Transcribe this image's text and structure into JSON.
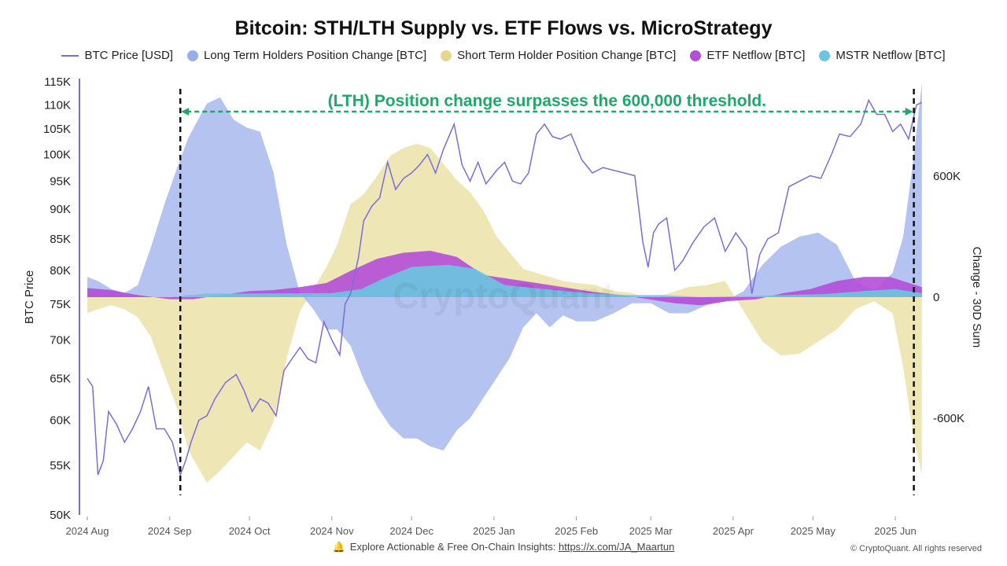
{
  "chart_data": {
    "type": "area",
    "title": "Bitcoin: STH/LTH Supply vs. ETF Flows vs. MicroStrategy",
    "ylabel_left": "BTC Price",
    "ylabel_right": "Change - 30D Sum",
    "y_left_ticks": [
      "115K",
      "110K",
      "105K",
      "100K",
      "95K",
      "90K",
      "85K",
      "80K",
      "75K",
      "70K",
      "65K",
      "60K",
      "55K",
      "50K"
    ],
    "y_left_scale": "log",
    "y_left_range": [
      50000,
      115000
    ],
    "y_right_ticks": [
      "600K",
      "0",
      "-600K"
    ],
    "y_right_range": [
      -1080000,
      1080000
    ],
    "x_ticks": [
      "2024 Aug",
      "2024 Sep",
      "2024 Oct",
      "2024 Nov",
      "2024 Dec",
      "2025 Jan",
      "2025 Feb",
      "2025 Mar",
      "2025 Apr",
      "2025 May",
      "2025 Jun"
    ],
    "annotation": "(LTH) Position change surpasses the 600,000 threshold.",
    "annotation_start": "2024-09-05",
    "annotation_end": "2025-06-08",
    "watermark": "CryptoQuant",
    "series": [
      {
        "name": "BTC Price [USD]",
        "type": "line",
        "color": "#7b6cd9",
        "axis": "left",
        "x": [
          "2024-08-01",
          "2024-08-03",
          "2024-08-05",
          "2024-08-07",
          "2024-08-09",
          "2024-08-12",
          "2024-08-15",
          "2024-08-18",
          "2024-08-21",
          "2024-08-24",
          "2024-08-27",
          "2024-08-30",
          "2024-09-02",
          "2024-09-05",
          "2024-09-07",
          "2024-09-09",
          "2024-09-12",
          "2024-09-15",
          "2024-09-18",
          "2024-09-22",
          "2024-09-26",
          "2024-09-29",
          "2024-10-02",
          "2024-10-05",
          "2024-10-08",
          "2024-10-11",
          "2024-10-14",
          "2024-10-17",
          "2024-10-20",
          "2024-10-23",
          "2024-10-26",
          "2024-10-29",
          "2024-11-01",
          "2024-11-04",
          "2024-11-06",
          "2024-11-08",
          "2024-11-11",
          "2024-11-13",
          "2024-11-16",
          "2024-11-19",
          "2024-11-22",
          "2024-11-25",
          "2024-11-28",
          "2024-12-01",
          "2024-12-04",
          "2024-12-07",
          "2024-12-10",
          "2024-12-13",
          "2024-12-17",
          "2024-12-20",
          "2024-12-23",
          "2024-12-26",
          "2024-12-29",
          "2025-01-02",
          "2025-01-05",
          "2025-01-08",
          "2025-01-11",
          "2025-01-14",
          "2025-01-17",
          "2025-01-20",
          "2025-01-23",
          "2025-01-26",
          "2025-01-30",
          "2025-02-03",
          "2025-02-07",
          "2025-02-11",
          "2025-02-15",
          "2025-02-19",
          "2025-02-23",
          "2025-02-26",
          "2025-02-28",
          "2025-03-02",
          "2025-03-04",
          "2025-03-07",
          "2025-03-10",
          "2025-03-13",
          "2025-03-17",
          "2025-03-21",
          "2025-03-25",
          "2025-03-29",
          "2025-04-02",
          "2025-04-06",
          "2025-04-08",
          "2025-04-11",
          "2025-04-14",
          "2025-04-18",
          "2025-04-22",
          "2025-04-26",
          "2025-04-30",
          "2025-05-04",
          "2025-05-08",
          "2025-05-11",
          "2025-05-15",
          "2025-05-19",
          "2025-05-22",
          "2025-05-25",
          "2025-05-28",
          "2025-05-31",
          "2025-06-03",
          "2025-06-06",
          "2025-06-09",
          "2025-06-11"
        ],
        "y": [
          65000,
          64000,
          54000,
          55500,
          61000,
          59500,
          57500,
          59000,
          61000,
          64000,
          59000,
          59000,
          57500,
          54000,
          55500,
          57500,
          60000,
          60500,
          62500,
          64500,
          65500,
          63500,
          61000,
          62500,
          62000,
          60500,
          66000,
          67500,
          69000,
          67500,
          67000,
          72500,
          70000,
          68000,
          75000,
          76500,
          82000,
          88000,
          90500,
          92000,
          98500,
          93500,
          95500,
          96500,
          98000,
          100000,
          96500,
          101000,
          106000,
          98000,
          95000,
          98500,
          94500,
          97000,
          98500,
          95000,
          94500,
          96500,
          104000,
          106000,
          103500,
          103000,
          104000,
          99000,
          96500,
          97500,
          97000,
          96500,
          96000,
          84500,
          80500,
          86000,
          87500,
          88500,
          80000,
          81500,
          84500,
          87000,
          88500,
          83000,
          86000,
          83500,
          76500,
          82500,
          85000,
          86000,
          94000,
          95000,
          96000,
          95500,
          100000,
          104000,
          103500,
          106000,
          111000,
          108000,
          108000,
          104500,
          106000,
          103000,
          110000,
          110500
        ]
      },
      {
        "name": "Long Term Holders Position Change [BTC]",
        "type": "area",
        "color": "#a7b9ec",
        "axis": "right",
        "x": [
          "2024-08-01",
          "2024-08-05",
          "2024-08-10",
          "2024-08-15",
          "2024-08-20",
          "2024-08-25",
          "2024-08-30",
          "2024-09-04",
          "2024-09-08",
          "2024-09-15",
          "2024-09-20",
          "2024-09-25",
          "2024-09-30",
          "2024-10-05",
          "2024-10-10",
          "2024-10-15",
          "2024-10-20",
          "2024-10-25",
          "2024-10-30",
          "2024-11-03",
          "2024-11-08",
          "2024-11-13",
          "2024-11-18",
          "2024-11-23",
          "2024-11-28",
          "2024-12-03",
          "2024-12-08",
          "2024-12-13",
          "2024-12-18",
          "2024-12-23",
          "2024-12-28",
          "2025-01-02",
          "2025-01-07",
          "2025-01-12",
          "2025-01-17",
          "2025-01-22",
          "2025-01-27",
          "2025-02-01",
          "2025-02-08",
          "2025-02-15",
          "2025-02-22",
          "2025-03-01",
          "2025-03-08",
          "2025-03-15",
          "2025-03-22",
          "2025-03-29",
          "2025-04-05",
          "2025-04-12",
          "2025-04-19",
          "2025-04-26",
          "2025-05-03",
          "2025-05-10",
          "2025-05-17",
          "2025-05-24",
          "2025-05-31",
          "2025-06-04",
          "2025-06-08",
          "2025-06-11"
        ],
        "y": [
          100000,
          80000,
          40000,
          20000,
          60000,
          250000,
          460000,
          650000,
          790000,
          960000,
          990000,
          880000,
          840000,
          820000,
          620000,
          260000,
          20000,
          -60000,
          -160000,
          -160000,
          -240000,
          -410000,
          -540000,
          -640000,
          -700000,
          -700000,
          -740000,
          -760000,
          -660000,
          -600000,
          -500000,
          -400000,
          -300000,
          -150000,
          -80000,
          -150000,
          -90000,
          -120000,
          -120000,
          -80000,
          -30000,
          -30000,
          -80000,
          -80000,
          -40000,
          -20000,
          30000,
          160000,
          250000,
          300000,
          320000,
          260000,
          80000,
          30000,
          120000,
          300000,
          700000,
          1060000
        ]
      },
      {
        "name": "Short Term Holder Position Change [BTC]",
        "type": "area",
        "color": "#ede3ae",
        "axis": "right",
        "x": [
          "2024-08-01",
          "2024-08-05",
          "2024-08-10",
          "2024-08-15",
          "2024-08-20",
          "2024-08-25",
          "2024-08-30",
          "2024-09-04",
          "2024-09-08",
          "2024-09-15",
          "2024-09-20",
          "2024-09-25",
          "2024-09-30",
          "2024-10-05",
          "2024-10-10",
          "2024-10-15",
          "2024-10-20",
          "2024-10-25",
          "2024-10-30",
          "2024-11-03",
          "2024-11-08",
          "2024-11-13",
          "2024-11-18",
          "2024-11-23",
          "2024-11-28",
          "2024-12-03",
          "2024-12-08",
          "2024-12-13",
          "2024-12-18",
          "2024-12-23",
          "2024-12-28",
          "2025-01-02",
          "2025-01-07",
          "2025-01-12",
          "2025-01-17",
          "2025-01-22",
          "2025-01-27",
          "2025-02-01",
          "2025-02-08",
          "2025-02-15",
          "2025-02-22",
          "2025-03-01",
          "2025-03-08",
          "2025-03-15",
          "2025-03-22",
          "2025-03-29",
          "2025-04-05",
          "2025-04-12",
          "2025-04-19",
          "2025-04-26",
          "2025-05-03",
          "2025-05-10",
          "2025-05-17",
          "2025-05-24",
          "2025-05-31",
          "2025-06-04",
          "2025-06-08",
          "2025-06-11"
        ],
        "y": [
          -80000,
          -60000,
          -40000,
          -60000,
          -100000,
          -200000,
          -380000,
          -560000,
          -760000,
          -920000,
          -860000,
          -790000,
          -720000,
          -760000,
          -620000,
          -300000,
          -70000,
          40000,
          150000,
          260000,
          460000,
          510000,
          600000,
          700000,
          740000,
          760000,
          740000,
          660000,
          580000,
          520000,
          430000,
          300000,
          220000,
          140000,
          120000,
          100000,
          80000,
          70000,
          60000,
          30000,
          20000,
          -10000,
          20000,
          50000,
          60000,
          80000,
          -70000,
          -220000,
          -290000,
          -280000,
          -220000,
          -160000,
          -60000,
          -20000,
          -80000,
          -350000,
          -700000,
          -880000
        ]
      },
      {
        "name": "ETF Netflow [BTC]",
        "type": "area",
        "color": "#b44ed8",
        "axis": "right",
        "x": [
          "2024-08-01",
          "2024-08-10",
          "2024-08-20",
          "2024-09-01",
          "2024-09-10",
          "2024-09-20",
          "2024-10-01",
          "2024-10-10",
          "2024-10-20",
          "2024-10-30",
          "2024-11-08",
          "2024-11-18",
          "2024-11-28",
          "2024-12-08",
          "2024-12-18",
          "2024-12-28",
          "2025-01-07",
          "2025-01-17",
          "2025-01-27",
          "2025-02-08",
          "2025-02-18",
          "2025-02-28",
          "2025-03-10",
          "2025-03-20",
          "2025-03-30",
          "2025-04-10",
          "2025-04-20",
          "2025-04-30",
          "2025-05-10",
          "2025-05-20",
          "2025-05-30",
          "2025-06-11"
        ],
        "y": [
          45000,
          35000,
          10000,
          -10000,
          -10000,
          10000,
          30000,
          35000,
          50000,
          70000,
          130000,
          190000,
          220000,
          230000,
          200000,
          110000,
          90000,
          70000,
          50000,
          25000,
          10000,
          -10000,
          -30000,
          -40000,
          -20000,
          -10000,
          20000,
          40000,
          80000,
          100000,
          100000,
          50000
        ]
      },
      {
        "name": "MSTR Netflow [BTC]",
        "type": "area",
        "color": "#6ac6e0",
        "axis": "right",
        "x": [
          "2024-08-01",
          "2024-09-01",
          "2024-09-15",
          "2024-10-01",
          "2024-11-01",
          "2024-11-12",
          "2024-11-20",
          "2024-12-01",
          "2024-12-15",
          "2024-12-25",
          "2025-01-05",
          "2025-01-20",
          "2025-02-05",
          "2025-02-20",
          "2025-03-05",
          "2025-03-20",
          "2025-04-05",
          "2025-04-20",
          "2025-05-05",
          "2025-05-20",
          "2025-06-01",
          "2025-06-11"
        ],
        "y": [
          0,
          0,
          18000,
          18000,
          20000,
          40000,
          90000,
          150000,
          160000,
          140000,
          60000,
          40000,
          20000,
          10000,
          10000,
          0,
          5000,
          10000,
          15000,
          30000,
          40000,
          20000
        ]
      }
    ]
  },
  "footer": {
    "text": "Explore Actionable & Free On-Chain Insights: ",
    "link": "https://x.com/JA_Maartun",
    "copyright": "© CryptoQuant. All rights reserved"
  }
}
